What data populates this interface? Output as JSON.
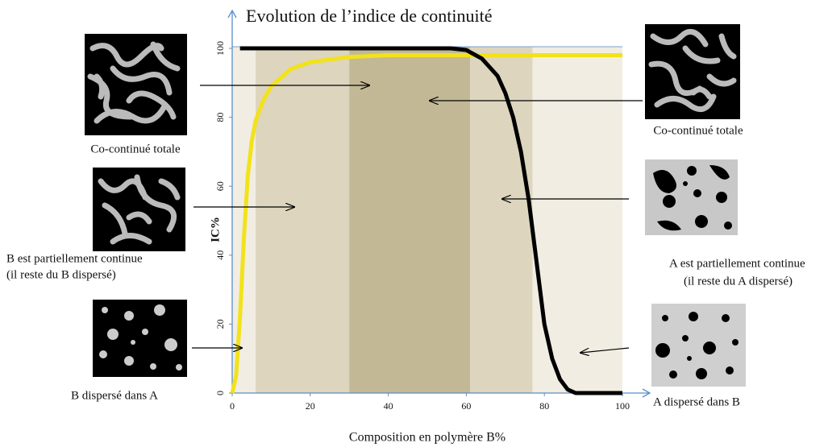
{
  "chart_data": {
    "type": "line",
    "title": "Evolution de l’indice de continuité",
    "xlabel": "Composition en polymère B%",
    "ylabel": "IC%",
    "xlim": [
      0,
      100
    ],
    "ylim": [
      0,
      100
    ],
    "xticks": [
      0,
      20,
      40,
      60,
      80,
      100
    ],
    "yticks": [
      0,
      20,
      40,
      60,
      80,
      100
    ],
    "bands": [
      {
        "from": 0,
        "to": 6,
        "color": "#f1ede2"
      },
      {
        "from": 6,
        "to": 30,
        "color": "#ddd5be"
      },
      {
        "from": 30,
        "to": 61,
        "color": "#c3b896"
      },
      {
        "from": 61,
        "to": 77,
        "color": "#ddd5be"
      },
      {
        "from": 77,
        "to": 100,
        "color": "#f1ede2"
      }
    ],
    "series": [
      {
        "color": "#f2e21a",
        "x": [
          0,
          1,
          2,
          3,
          4,
          5,
          6,
          8,
          10,
          15,
          20,
          30,
          40,
          100
        ],
        "values": [
          0,
          5,
          22,
          45,
          63,
          73,
          79,
          85,
          89,
          94,
          96,
          97.5,
          98,
          98
        ]
      },
      {
        "color": "#000000",
        "x": [
          2,
          50,
          56,
          60,
          64,
          68,
          70,
          72,
          74,
          76,
          78,
          80,
          82,
          84,
          86,
          88,
          100
        ],
        "values": [
          100,
          100,
          100,
          99.5,
          97,
          92,
          87,
          80,
          70,
          56,
          38,
          20,
          10,
          4,
          1,
          0,
          0
        ]
      }
    ],
    "annotations": [
      "Co-continué totale",
      "Co-continué totale",
      "B  est partiellement continue",
      "(il reste du  B dispersé)",
      "A est partiellement continue",
      "(il reste du A dispersé)",
      "B dispersé dans A",
      "A dispersé dans B"
    ]
  }
}
